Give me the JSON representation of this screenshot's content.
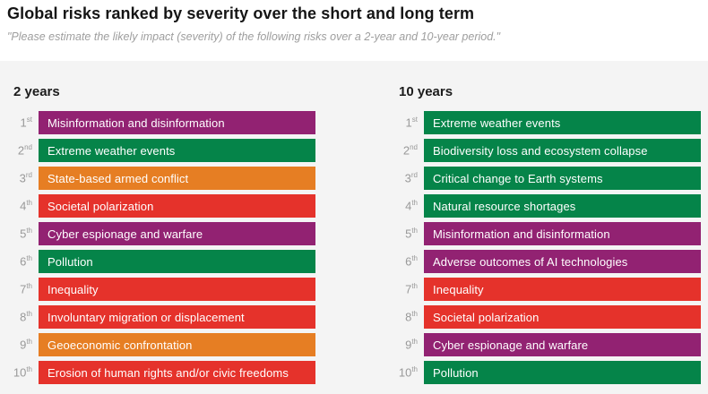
{
  "header": {
    "title": "Global risks ranked by severity over the short and long term",
    "subtitle": "\"Please estimate the likely impact (severity) of the following risks over a 2-year and 10-year period.\""
  },
  "colors": {
    "technological": "#922272",
    "environmental": "#058449",
    "geopolitical": "#E67E23",
    "societal": "#E5322B",
    "panel_background": "#F4F4F4",
    "rank_text": "#999999",
    "bar_text": "#FFFFFF"
  },
  "chart_data": {
    "type": "table",
    "title": "Global risks ranked by severity over the short and long term",
    "subtitle": "\"Please estimate the likely impact (severity) of the following risks over a 2-year and 10-year period.\"",
    "legend_position": "none",
    "columns": [
      {
        "label": "2 years",
        "items": [
          {
            "rank": "1",
            "suffix": "st",
            "label": "Misinformation and disinformation",
            "category": "technological",
            "color": "#922272"
          },
          {
            "rank": "2",
            "suffix": "nd",
            "label": "Extreme weather events",
            "category": "environmental",
            "color": "#058449"
          },
          {
            "rank": "3",
            "suffix": "rd",
            "label": "State-based armed conflict",
            "category": "geopolitical",
            "color": "#E67E23"
          },
          {
            "rank": "4",
            "suffix": "th",
            "label": "Societal polarization",
            "category": "societal",
            "color": "#E5322B"
          },
          {
            "rank": "5",
            "suffix": "th",
            "label": "Cyber espionage and warfare",
            "category": "technological",
            "color": "#922272"
          },
          {
            "rank": "6",
            "suffix": "th",
            "label": "Pollution",
            "category": "environmental",
            "color": "#058449"
          },
          {
            "rank": "7",
            "suffix": "th",
            "label": "Inequality",
            "category": "societal",
            "color": "#E5322B"
          },
          {
            "rank": "8",
            "suffix": "th",
            "label": "Involuntary migration or displacement",
            "category": "societal",
            "color": "#E5322B"
          },
          {
            "rank": "9",
            "suffix": "th",
            "label": "Geoeconomic confrontation",
            "category": "geopolitical",
            "color": "#E67E23"
          },
          {
            "rank": "10",
            "suffix": "th",
            "label": "Erosion of human rights and/or civic freedoms",
            "category": "societal",
            "color": "#E5322B"
          }
        ]
      },
      {
        "label": "10 years",
        "items": [
          {
            "rank": "1",
            "suffix": "st",
            "label": "Extreme weather events",
            "category": "environmental",
            "color": "#058449"
          },
          {
            "rank": "2",
            "suffix": "nd",
            "label": "Biodiversity loss and ecosystem collapse",
            "category": "environmental",
            "color": "#058449"
          },
          {
            "rank": "3",
            "suffix": "rd",
            "label": "Critical change to Earth systems",
            "category": "environmental",
            "color": "#058449"
          },
          {
            "rank": "4",
            "suffix": "th",
            "label": "Natural resource shortages",
            "category": "environmental",
            "color": "#058449"
          },
          {
            "rank": "5",
            "suffix": "th",
            "label": "Misinformation and disinformation",
            "category": "technological",
            "color": "#922272"
          },
          {
            "rank": "6",
            "suffix": "th",
            "label": "Adverse outcomes of AI technologies",
            "category": "technological",
            "color": "#922272"
          },
          {
            "rank": "7",
            "suffix": "th",
            "label": "Inequality",
            "category": "societal",
            "color": "#E5322B"
          },
          {
            "rank": "8",
            "suffix": "th",
            "label": "Societal polarization",
            "category": "societal",
            "color": "#E5322B"
          },
          {
            "rank": "9",
            "suffix": "th",
            "label": "Cyber espionage and warfare",
            "category": "technological",
            "color": "#922272"
          },
          {
            "rank": "10",
            "suffix": "th",
            "label": "Pollution",
            "category": "environmental",
            "color": "#058449"
          }
        ]
      }
    ]
  }
}
